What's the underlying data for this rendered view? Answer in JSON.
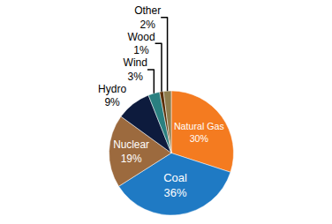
{
  "chart_data": {
    "type": "pie",
    "categories": [
      "Natural Gas",
      "Coal",
      "Nuclear",
      "Hydro",
      "Wind",
      "Wood",
      "Other"
    ],
    "values": [
      30,
      36,
      19,
      9,
      3,
      1,
      2
    ],
    "value_labels": [
      "30%",
      "36%",
      "19%",
      "9%",
      "3%",
      "1%",
      "2%"
    ],
    "colors": [
      "#f47b20",
      "#1f7ac4",
      "#9c6a3e",
      "#0d1b3d",
      "#2a8080",
      "#5a2e05",
      "#8f7d4e"
    ],
    "data_labels": true
  }
}
